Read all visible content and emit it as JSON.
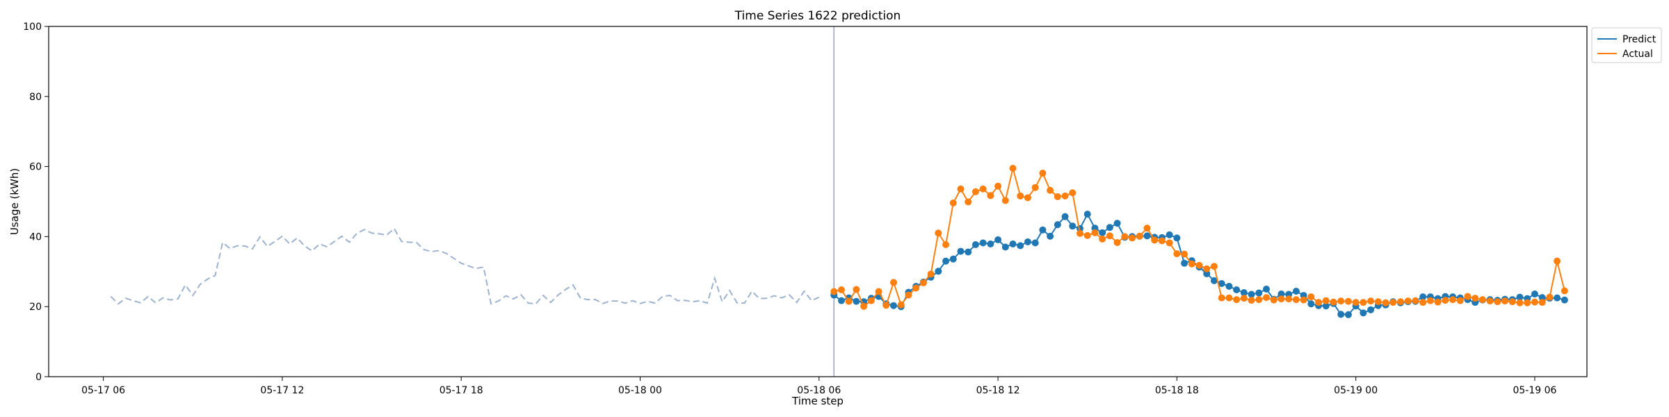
{
  "chart_data": {
    "type": "line",
    "title": "Time Series 1622 prediction",
    "xlabel": "Time step",
    "ylabel": "Usage (kWh)",
    "ylim": [
      0,
      100
    ],
    "xlim": [
      "2024-05-17T04:10",
      "2024-05-19T07:45"
    ],
    "yticks": [
      0,
      20,
      40,
      60,
      80,
      100
    ],
    "xticks": [
      {
        "t": "2024-05-17T06:00",
        "label": "05-17 06"
      },
      {
        "t": "2024-05-17T12:00",
        "label": "05-17 12"
      },
      {
        "t": "2024-05-17T18:00",
        "label": "05-17 18"
      },
      {
        "t": "2024-05-18T00:00",
        "label": "05-18 00"
      },
      {
        "t": "2024-05-18T06:00",
        "label": "05-18 06"
      },
      {
        "t": "2024-05-18T12:00",
        "label": "05-18 12"
      },
      {
        "t": "2024-05-18T18:00",
        "label": "05-18 18"
      },
      {
        "t": "2024-05-19T00:00",
        "label": "05-19 00"
      },
      {
        "t": "2024-05-19T06:00",
        "label": "05-19 06"
      }
    ],
    "step_minutes": 15,
    "history": {
      "start": "2024-05-17T06:15",
      "style": "dashed",
      "color": "#9db2ce",
      "values": [
        22.9,
        20.8,
        22.4,
        21.7,
        21.1,
        22.9,
        21.1,
        22.5,
        21.9,
        22.2,
        26.2,
        23.2,
        26.4,
        27.9,
        28.9,
        38.3,
        36.6,
        37.4,
        37.3,
        36.5,
        39.9,
        37.2,
        38.6,
        40.1,
        37.9,
        39.6,
        37.3,
        35.9,
        37.9,
        37.1,
        38.6,
        40.1,
        38.4,
        40.9,
        42.0,
        41.0,
        40.8,
        40.4,
        42.3,
        38.6,
        38.4,
        38.3,
        36.3,
        35.7,
        36.0,
        35.2,
        33.8,
        32.4,
        31.6,
        30.9,
        31.3,
        20.8,
        21.6,
        23.1,
        22.2,
        23.4,
        21.0,
        20.8,
        23.2,
        21.2,
        23.3,
        24.9,
        26.2,
        22.4,
        22.0,
        22.0,
        20.9,
        21.6,
        21.6,
        21.0,
        21.7,
        20.9,
        21.5,
        21.0,
        22.9,
        23.2,
        21.7,
        21.8,
        21.4,
        21.7,
        21.0,
        28.1,
        21.4,
        24.6,
        21.1,
        21.0,
        24.4,
        22.3,
        22.4,
        23.1,
        22.5,
        23.4,
        21.2,
        24.4,
        21.7,
        22.7
      ]
    },
    "forecast_start": "2024-05-18T06:30",
    "cutoff": "2024-05-18T06:30",
    "cutoff_color": "#8fa4d0",
    "legend": {
      "position": "top-right",
      "entries": [
        "Predict",
        "Actual"
      ]
    },
    "series": [
      {
        "name": "Predict",
        "color": "#1f77b4",
        "values": [
          23.3,
          21.7,
          22.5,
          21.5,
          21.4,
          22.4,
          22.9,
          20.8,
          20.3,
          20.0,
          24.1,
          25.8,
          27.0,
          28.4,
          30.1,
          33.0,
          33.6,
          35.8,
          35.6,
          37.7,
          38.2,
          37.9,
          39.1,
          37.0,
          37.9,
          37.4,
          38.5,
          38.2,
          41.9,
          40.1,
          43.4,
          45.7,
          43.0,
          42.3,
          46.4,
          42.4,
          41.1,
          42.6,
          43.8,
          39.8,
          40.0,
          40.1,
          40.2,
          39.8,
          39.7,
          40.5,
          39.6,
          32.4,
          33.1,
          31.3,
          29.4,
          27.4,
          26.6,
          25.8,
          24.8,
          24.0,
          23.5,
          23.9,
          25.0,
          22.1,
          23.6,
          23.5,
          24.4,
          23.2,
          20.8,
          20.3,
          20.2,
          20.9,
          17.8,
          17.7,
          20.2,
          18.2,
          19.1,
          20.3,
          20.5,
          21.4,
          21.1,
          21.4,
          21.5,
          22.8,
          22.8,
          22.3,
          22.9,
          22.8,
          22.5,
          22.0,
          21.2,
          21.9,
          22.0,
          21.8,
          22.1,
          22.0,
          22.7,
          22.3,
          23.6,
          22.6,
          22.4,
          22.5,
          21.9
        ]
      },
      {
        "name": "Actual",
        "color": "#ff7f0e",
        "values": [
          24.3,
          24.8,
          21.5,
          24.9,
          20.1,
          21.7,
          24.3,
          20.4,
          26.9,
          20.5,
          23.3,
          25.3,
          26.8,
          29.3,
          41.0,
          37.7,
          49.6,
          53.6,
          49.9,
          52.8,
          53.6,
          51.7,
          54.4,
          50.3,
          59.5,
          51.6,
          51.1,
          54.0,
          58.1,
          53.2,
          51.4,
          51.6,
          52.5,
          40.9,
          40.3,
          41.1,
          39.3,
          40.2,
          38.3,
          40.0,
          39.6,
          40.1,
          42.4,
          39.0,
          38.8,
          38.2,
          35.1,
          35.0,
          32.2,
          31.8,
          30.8,
          31.5,
          22.5,
          22.5,
          22.0,
          22.4,
          21.8,
          22.0,
          22.6,
          21.9,
          22.2,
          22.2,
          22.0,
          21.9,
          22.8,
          21.2,
          21.7,
          21.3,
          21.6,
          21.5,
          21.2,
          21.2,
          21.6,
          21.4,
          21.1,
          21.2,
          21.4,
          21.6,
          21.7,
          21.2,
          21.7,
          21.3,
          21.8,
          22.0,
          21.7,
          22.9,
          22.4,
          22.0,
          21.6,
          21.4,
          21.6,
          21.4,
          21.1,
          21.1,
          21.3,
          21.2,
          22.7,
          33.0,
          24.5
        ]
      }
    ]
  }
}
